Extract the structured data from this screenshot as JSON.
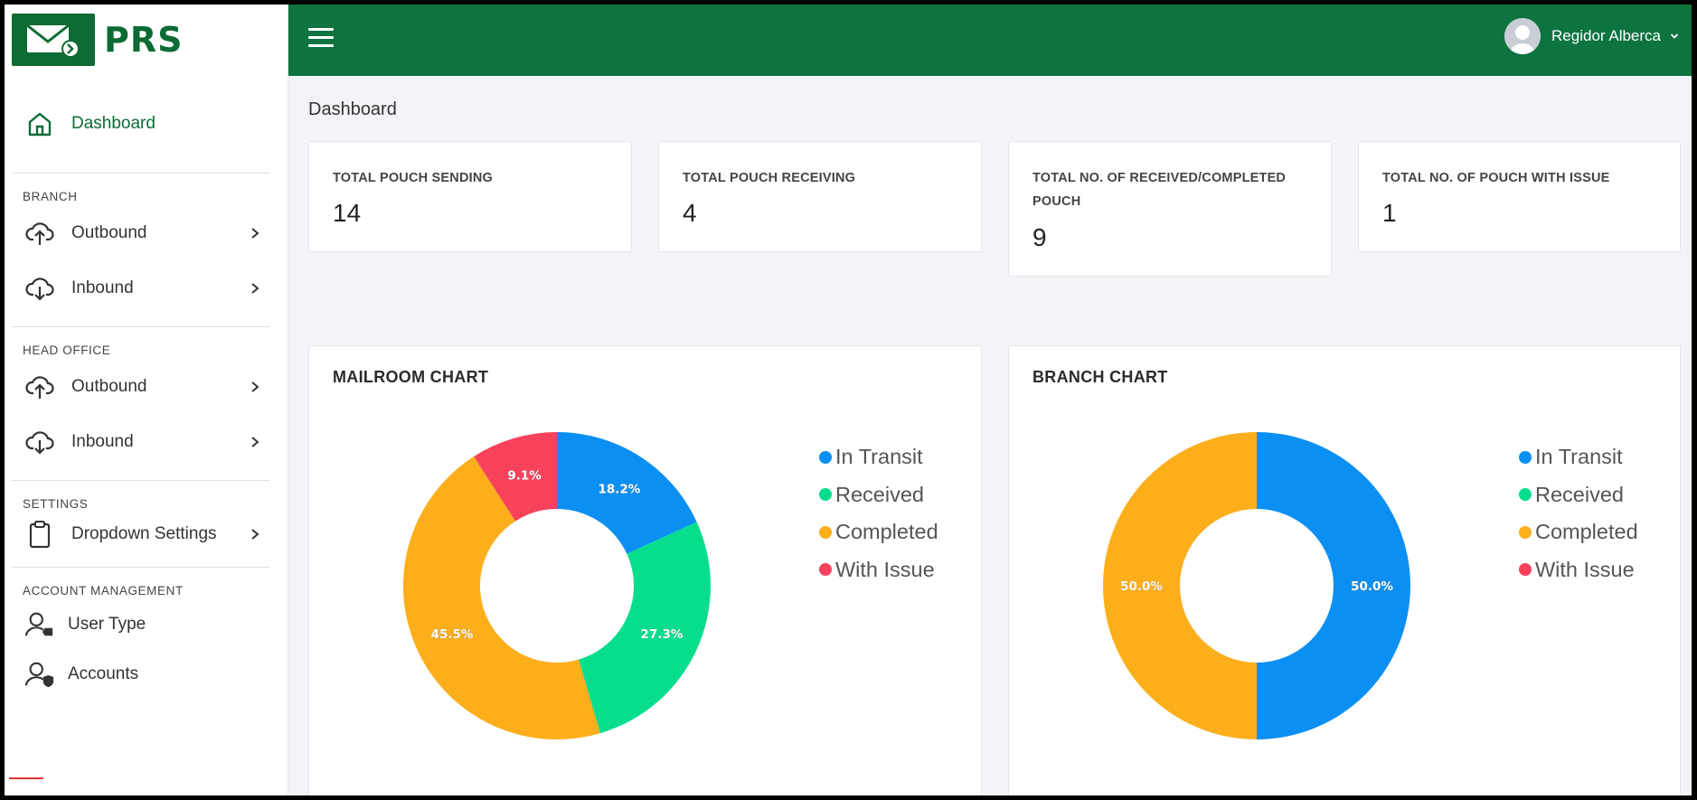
{
  "brand": {
    "name": "PRS"
  },
  "sidebar": {
    "dashboard_label": "Dashboard",
    "sections": {
      "branch": {
        "title": "BRANCH",
        "outbound": "Outbound",
        "inbound": "Inbound"
      },
      "head_office": {
        "title": "HEAD OFFICE",
        "outbound": "Outbound",
        "inbound": "Inbound"
      },
      "settings": {
        "title": "SETTINGS",
        "dropdown": "Dropdown Settings"
      },
      "account": {
        "title": "ACCOUNT MANAGEMENT",
        "user_type": "User Type",
        "accounts": "Accounts"
      }
    }
  },
  "topbar": {
    "user_name": "Regidor Alberca"
  },
  "page": {
    "title": "Dashboard"
  },
  "stats": [
    {
      "caption": "TOTAL POUCH SENDING",
      "value": "14"
    },
    {
      "caption": "TOTAL POUCH RECEIVING",
      "value": "4"
    },
    {
      "caption": "TOTAL NO. OF RECEIVED/COMPLETED POUCH",
      "value": "9"
    },
    {
      "caption": "TOTAL NO. OF POUCH WITH ISSUE",
      "value": "1"
    }
  ],
  "colors": {
    "in_transit": "#0c8ff2",
    "received": "#06de8e",
    "completed": "#fdae1b",
    "with_issue": "#f8425c",
    "brand_green": "#0d7440"
  },
  "chart_data": [
    {
      "type": "pie",
      "title": "MAILROOM CHART",
      "categories": [
        "In Transit",
        "Received",
        "Completed",
        "With Issue"
      ],
      "values": [
        18.2,
        27.3,
        45.5,
        9.1
      ],
      "labels": [
        "18.2%",
        "27.3%",
        "45.5%",
        "9.1%"
      ],
      "colors": [
        "#0c8ff2",
        "#06de8e",
        "#fdae1b",
        "#f8425c"
      ],
      "legend": "right"
    },
    {
      "type": "pie",
      "title": "BRANCH CHART",
      "categories": [
        "In Transit",
        "Received",
        "Completed",
        "With Issue"
      ],
      "values": [
        50.0,
        0,
        50.0,
        0
      ],
      "labels": [
        "50.0%",
        "",
        "50.0%",
        ""
      ],
      "colors": [
        "#0c8ff2",
        "#06de8e",
        "#fdae1b",
        "#f8425c"
      ],
      "legend": "right"
    }
  ]
}
